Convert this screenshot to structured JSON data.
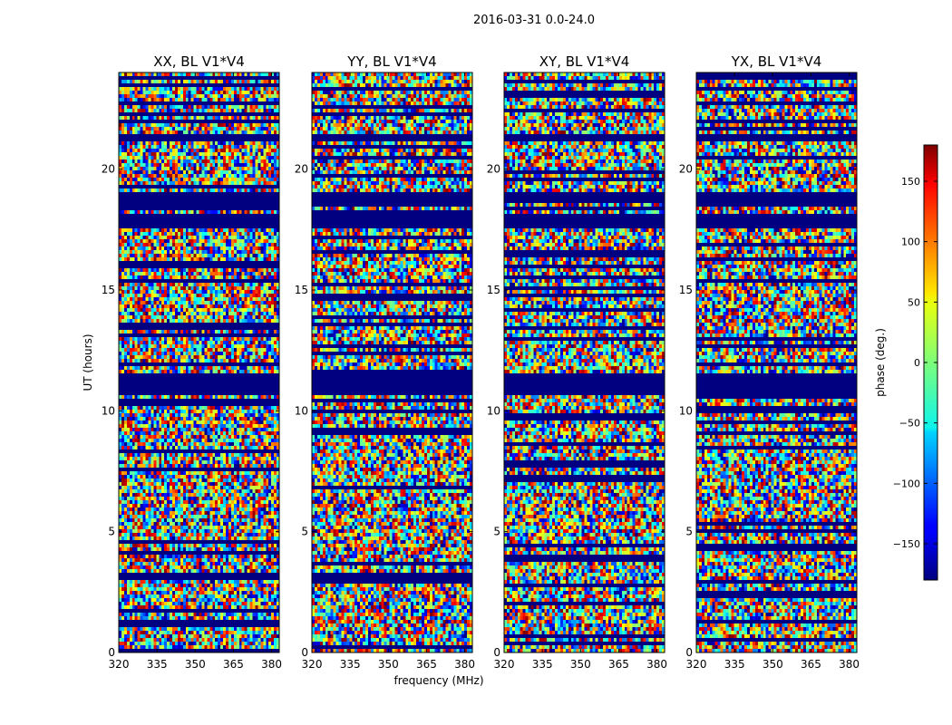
{
  "figure": {
    "suptitle": "2016-03-31 0.0-24.0",
    "xlabel": "frequency (MHz)",
    "ylabel": "UT (hours)"
  },
  "chart_data": {
    "type": "heatmap",
    "colormap": "jet",
    "xlim": [
      320,
      383
    ],
    "ylim": [
      0,
      24
    ],
    "xticks": [
      320,
      335,
      350,
      365,
      380
    ],
    "yticks": [
      0,
      5,
      10,
      15,
      20
    ],
    "panels": [
      {
        "title": "XX, BL V1*V4"
      },
      {
        "title": "YY, BL V1*V4"
      },
      {
        "title": "XY, BL V1*V4"
      },
      {
        "title": "YX, BL V1*V4"
      }
    ],
    "masked_bands_hours": [
      [
        10.6,
        11.6
      ],
      [
        17.6,
        18.1
      ],
      [
        18.6,
        19.0
      ],
      [
        21.1,
        21.4
      ]
    ],
    "colorbar": {
      "label": "phase (deg.)",
      "range": [
        -180,
        180
      ],
      "ticks": [
        -150,
        -100,
        -50,
        0,
        50,
        100,
        150
      ],
      "tick_labels": [
        "−150",
        "−100",
        "−50",
        "0",
        "50",
        "100",
        "150"
      ]
    }
  }
}
